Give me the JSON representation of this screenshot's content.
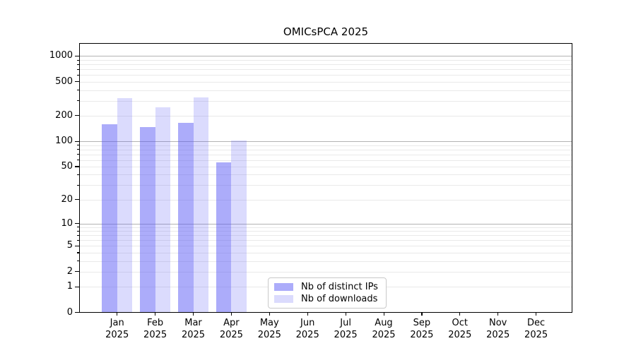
{
  "chart_data": {
    "type": "bar",
    "title": "OMICsPCA 2025",
    "months": [
      "Jan",
      "Feb",
      "Mar",
      "Apr",
      "May",
      "Jun",
      "Jul",
      "Aug",
      "Sep",
      "Oct",
      "Nov",
      "Dec"
    ],
    "year_label": "2025",
    "series": [
      {
        "name": "Nb of distinct IPs",
        "color": "rgba(90,90,245,0.5)",
        "values": [
          160,
          148,
          166,
          56,
          0,
          0,
          0,
          0,
          0,
          0,
          0,
          0
        ]
      },
      {
        "name": "Nb of downloads",
        "color": "rgba(90,90,245,0.22)",
        "values": [
          321,
          250,
          328,
          102,
          0,
          0,
          0,
          0,
          0,
          0,
          0,
          0
        ]
      }
    ],
    "yscale": "log1p",
    "yticks": [
      0,
      1,
      2,
      5,
      10,
      20,
      50,
      100,
      200,
      500,
      1000
    ],
    "ylim": [
      0,
      1450
    ],
    "grid": "on",
    "major_grid_color": "#b3b3b3",
    "minor_grid_color": "#e9e9e9",
    "legend_position": "lower-center"
  }
}
